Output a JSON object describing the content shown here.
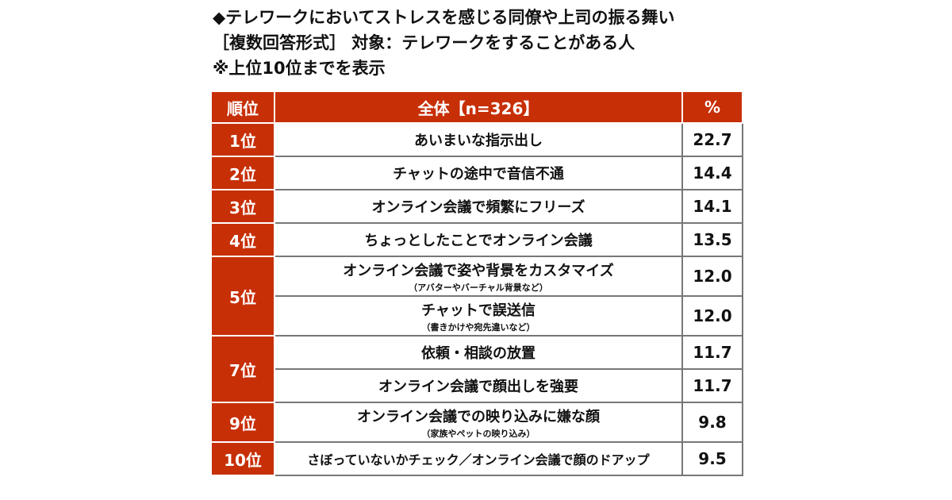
{
  "heading": {
    "line1": "◆テレワークにおいてストレスを感じる同僚や上司の振る舞い",
    "line2": "［複数回答形式］ 対象：テレワークをすることがある人",
    "line3": "※上位10位までを表示"
  },
  "table": {
    "col_rank": "順位",
    "col_item": "全体【n=326】",
    "col_pct": "%",
    "rows": [
      {
        "rank": "1位",
        "item": "あいまいな指示出し",
        "note": "",
        "pct": "22.7"
      },
      {
        "rank": "2位",
        "item": "チャットの途中で音信不通",
        "note": "",
        "pct": "14.4"
      },
      {
        "rank": "3位",
        "item": "オンライン会議で頻繁にフリーズ",
        "note": "",
        "pct": "14.1"
      },
      {
        "rank": "4位",
        "item": "ちょっとしたことでオンライン会議",
        "note": "",
        "pct": "13.5"
      },
      {
        "rank": "5位",
        "item": "オンライン会議で姿や背景をカスタマイズ",
        "note": "（アバターやバーチャル背景など）",
        "pct": "12.0"
      },
      {
        "rank": "",
        "item": "チャットで誤送信",
        "note": "（書きかけや宛先違いなど）",
        "pct": "12.0"
      },
      {
        "rank": "7位",
        "item": "依頼・相談の放置",
        "note": "",
        "pct": "11.7"
      },
      {
        "rank": "",
        "item": "オンライン会議で顔出しを強要",
        "note": "",
        "pct": "11.7"
      },
      {
        "rank": "9位",
        "item": "オンライン会議での映り込みに嫌な顔",
        "note": "（家族やペットの映り込み）",
        "pct": "9.8"
      },
      {
        "rank": "10位",
        "item": "さぼっていないかチェック／オンライン会議で顔のドアップ",
        "note": "",
        "pct": "9.5"
      }
    ]
  }
}
